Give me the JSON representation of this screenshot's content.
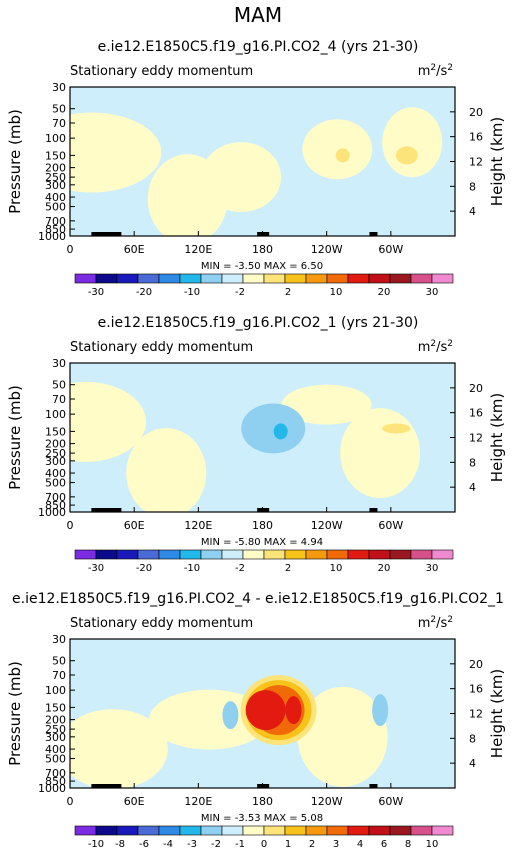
{
  "page_title": "MAM",
  "chart_data": [
    {
      "type": "heatmap",
      "title": "e.ie12.E1850C5.f19_g16.PI.CO2_4 (yrs 21-30)",
      "subtitle": "Stationary eddy momentum",
      "units": "m2/s2",
      "ylabel": "Pressure (mb)",
      "y2label": "Height (km)",
      "x_ticks": [
        "0",
        "60E",
        "120E",
        "180",
        "120W",
        "60W"
      ],
      "y_ticks": [
        "30",
        "50",
        "70",
        "100",
        "150",
        "200",
        "250",
        "300",
        "400",
        "500",
        "700",
        "850",
        "1000"
      ],
      "y2_ticks": [
        "20",
        "16",
        "12",
        "8",
        "4"
      ],
      "stats": {
        "min_label": "MIN =",
        "min": "-3.50",
        "max_label": "MAX =",
        "max": "6.50"
      },
      "colorbar": {
        "labels": [
          "-30",
          "-20",
          "-10",
          "-2",
          "2",
          "10",
          "20",
          "30"
        ],
        "colors": [
          "#7b2be2",
          "#0a0a8a",
          "#1a1aba",
          "#4a6ad6",
          "#2f8ae6",
          "#22b8ea",
          "#8fd0f0",
          "#cdeefa",
          "#fffcc8",
          "#fde47a",
          "#f7c21a",
          "#f59a0e",
          "#f06a0a",
          "#e21a10",
          "#c01018",
          "#9a1820",
          "#d8508a",
          "#f08ad0"
        ]
      },
      "features": {
        "background": "#cdeefa",
        "regions": [
          {
            "lon": 20,
            "lev": 140,
            "color": "#fffcc8"
          },
          {
            "lon": 110,
            "lev": 420,
            "color": "#fffcc8"
          },
          {
            "lon": 160,
            "lev": 250,
            "color": "#fffcc8"
          },
          {
            "lon": 250,
            "lev": 130,
            "color": "#fffcc8"
          },
          {
            "lon": 320,
            "lev": 110,
            "color": "#fffcc8"
          },
          {
            "lon": 255,
            "lev": 150,
            "color": "#fde47a"
          },
          {
            "lon": 315,
            "lev": 150,
            "color": "#fde47a"
          }
        ]
      }
    },
    {
      "type": "heatmap",
      "title": "e.ie12.E1850C5.f19_g16.PI.CO2_1 (yrs 21-30)",
      "subtitle": "Stationary eddy momentum",
      "units": "m2/s2",
      "ylabel": "Pressure (mb)",
      "y2label": "Height (km)",
      "x_ticks": [
        "0",
        "60E",
        "120E",
        "180",
        "120W",
        "60W"
      ],
      "y_ticks": [
        "30",
        "50",
        "70",
        "100",
        "150",
        "200",
        "250",
        "300",
        "400",
        "500",
        "700",
        "850",
        "1000"
      ],
      "y2_ticks": [
        "20",
        "16",
        "12",
        "8",
        "4"
      ],
      "stats": {
        "min_label": "MIN =",
        "min": "-5.80",
        "max_label": "MAX =",
        "max": "4.94"
      },
      "colorbar": {
        "labels": [
          "-30",
          "-20",
          "-10",
          "-2",
          "2",
          "10",
          "20",
          "30"
        ],
        "colors": [
          "#7b2be2",
          "#0a0a8a",
          "#1a1aba",
          "#4a6ad6",
          "#2f8ae6",
          "#22b8ea",
          "#8fd0f0",
          "#cdeefa",
          "#fffcc8",
          "#fde47a",
          "#f7c21a",
          "#f59a0e",
          "#f06a0a",
          "#e21a10",
          "#c01018",
          "#9a1820",
          "#d8508a",
          "#f08ad0"
        ]
      },
      "features": {
        "background": "#cdeefa",
        "regions": [
          {
            "lon": 15,
            "lev": 120,
            "color": "#fffcc8"
          },
          {
            "lon": 90,
            "lev": 400,
            "color": "#fffcc8"
          },
          {
            "lon": 240,
            "lev": 80,
            "color": "#fffcc8"
          },
          {
            "lon": 290,
            "lev": 250,
            "color": "#fffcc8"
          },
          {
            "lon": 190,
            "lev": 140,
            "color": "#8fd0f0"
          },
          {
            "lon": 197,
            "lev": 150,
            "color": "#22b8ea"
          },
          {
            "lon": 305,
            "lev": 140,
            "color": "#fde47a"
          }
        ]
      }
    },
    {
      "type": "heatmap",
      "title": "e.ie12.E1850C5.f19_g16.PI.CO2_4 - e.ie12.E1850C5.f19_g16.PI.CO2_1",
      "subtitle": "Stationary eddy momentum",
      "units": "m2/s2",
      "ylabel": "Pressure (mb)",
      "y2label": "Height (km)",
      "x_ticks": [
        "0",
        "60E",
        "120E",
        "180",
        "120W",
        "60W"
      ],
      "y_ticks": [
        "30",
        "50",
        "70",
        "100",
        "150",
        "200",
        "250",
        "300",
        "400",
        "500",
        "700",
        "850",
        "1000"
      ],
      "y2_ticks": [
        "20",
        "16",
        "12",
        "8",
        "4"
      ],
      "stats": {
        "min_label": "MIN =",
        "min": "-3.53",
        "max_label": "MAX =",
        "max": "5.08"
      },
      "colorbar": {
        "labels": [
          "-10",
          "-8",
          "-6",
          "-4",
          "-3",
          "-2",
          "-1",
          "0",
          "1",
          "2",
          "3",
          "4",
          "6",
          "8",
          "10"
        ],
        "colors": [
          "#7b2be2",
          "#0a0a8a",
          "#1a1aba",
          "#4a6ad6",
          "#2f8ae6",
          "#22b8ea",
          "#8fd0f0",
          "#cdeefa",
          "#fffcc8",
          "#fde47a",
          "#f7c21a",
          "#f59a0e",
          "#f06a0a",
          "#e21a10",
          "#c01018",
          "#9a1820",
          "#d8508a",
          "#f08ad0"
        ]
      },
      "features": {
        "background": "#cdeefa",
        "regions": [
          {
            "lon": 40,
            "lev": 400,
            "color": "#fffcc8"
          },
          {
            "lon": 130,
            "lev": 200,
            "color": "#fffcc8"
          },
          {
            "lon": 255,
            "lev": 300,
            "color": "#fffcc8"
          },
          {
            "lon": 195,
            "lev": 160,
            "color": "#fde47a"
          },
          {
            "lon": 195,
            "lev": 160,
            "color": "#f7c21a"
          },
          {
            "lon": 195,
            "lev": 160,
            "color": "#f06a0a"
          },
          {
            "lon": 183,
            "lev": 160,
            "color": "#e21a10"
          },
          {
            "lon": 209,
            "lev": 160,
            "color": "#e21a10"
          },
          {
            "lon": 150,
            "lev": 180,
            "color": "#8fd0f0"
          },
          {
            "lon": 290,
            "lev": 160,
            "color": "#8fd0f0"
          }
        ]
      }
    }
  ]
}
